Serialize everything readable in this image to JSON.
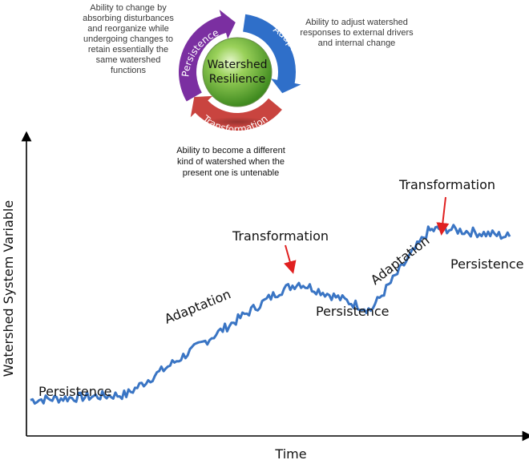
{
  "cycle": {
    "center_label_line1": "Watershed",
    "center_label_line2": "Resilience",
    "arrows": [
      {
        "label": "Persistence",
        "color": "#7b2fa1"
      },
      {
        "label": "Adaptation",
        "color": "#2f6fc9"
      },
      {
        "label": "Transformation",
        "color": "#c9443f"
      }
    ],
    "descriptions": {
      "persistence": "Ability to change by absorbing disturbances and reorganize while undergoing changes to retain essentially the same watershed functions",
      "adaptation": "Ability to adjust watershed responses to external drivers and internal change",
      "transformation": "Ability to become a different kind of watershed when the present one is untenable"
    },
    "center_color": "#5aa832"
  },
  "chart_data": {
    "type": "line",
    "xlabel": "Time",
    "ylabel": "Watershed System Variable",
    "x_ticks": [],
    "y_ticks": [],
    "line_color": "#3a75c4",
    "segments": [
      {
        "phase": "Persistence",
        "x": [
          0.0,
          0.2
        ],
        "y": [
          0.12,
          0.14
        ]
      },
      {
        "phase": "Adaptation",
        "x": [
          0.2,
          0.52
        ],
        "y": [
          0.14,
          0.52
        ]
      },
      {
        "phase": "Transformation",
        "x": [
          0.52,
          0.56
        ],
        "y": [
          0.52,
          0.55
        ]
      },
      {
        "phase": "Persistence",
        "x": [
          0.56,
          0.71
        ],
        "y": [
          0.55,
          0.45
        ]
      },
      {
        "phase": "Adaptation",
        "x": [
          0.71,
          0.83
        ],
        "y": [
          0.45,
          0.74
        ]
      },
      {
        "phase": "Transformation",
        "x": [
          0.83,
          0.86
        ],
        "y": [
          0.74,
          0.75
        ]
      },
      {
        "phase": "Persistence",
        "x": [
          0.86,
          1.0
        ],
        "y": [
          0.75,
          0.72
        ]
      }
    ],
    "annotations": [
      {
        "label": "Persistence",
        "kind": "text"
      },
      {
        "label": "Adaptation",
        "kind": "rotated-text"
      },
      {
        "label": "Transformation",
        "kind": "arrow"
      },
      {
        "label": "Persistence",
        "kind": "text"
      },
      {
        "label": "Adaptation",
        "kind": "rotated-text"
      },
      {
        "label": "Transformation",
        "kind": "arrow"
      },
      {
        "label": "Persistence",
        "kind": "text"
      }
    ],
    "annotation_arrow_color": "#e02020",
    "grid": false,
    "legend": "none"
  }
}
